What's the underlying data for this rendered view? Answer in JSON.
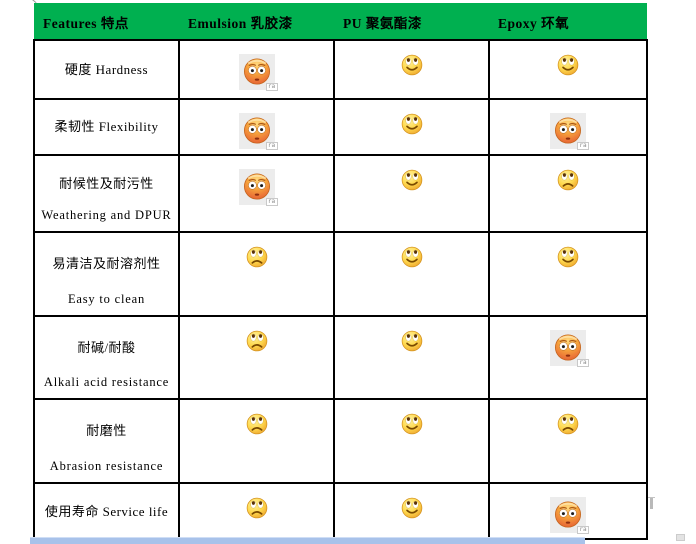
{
  "colors": {
    "header_green": "#00B050",
    "scrollbar_blue": "#A8C2EA",
    "border_black": "#000000",
    "flushed_bg_gray": "#ECECEC"
  },
  "table": {
    "header": {
      "columns": [
        {
          "label": "Features 特点"
        },
        {
          "label": "Emulsion 乳胶漆"
        },
        {
          "label": "PU 聚氨酯漆"
        },
        {
          "label": "Epoxy 环氧"
        }
      ]
    },
    "rating_icons": {
      "flushed": "flushed-face-icon",
      "smile": "smiling-face-icon",
      "sad": "frowning-face-icon"
    },
    "rows": [
      {
        "feature_line1": "硬度 Hardness",
        "feature_line2": "",
        "emulsion": "flushed",
        "pu": "smile",
        "epoxy": "smile"
      },
      {
        "feature_line1": "柔韧性 Flexibility",
        "feature_line2": "",
        "emulsion": "flushed",
        "pu": "smile",
        "epoxy": "flushed"
      },
      {
        "feature_line1": "耐候性及耐污性",
        "feature_line2": "Weathering and DPUR",
        "emulsion": "flushed",
        "pu": "smile",
        "epoxy": "sad"
      },
      {
        "feature_line1": "易清洁及耐溶剂性",
        "feature_line2": "Easy to clean",
        "emulsion": "sad",
        "pu": "smile",
        "epoxy": "smile"
      },
      {
        "feature_line1": "耐碱/耐酸",
        "feature_line2": "Alkali acid resistance",
        "emulsion": "sad",
        "pu": "smile",
        "epoxy": "flushed"
      },
      {
        "feature_line1": "耐磨性",
        "feature_line2": "Abrasion resistance",
        "emulsion": "sad",
        "pu": "smile",
        "epoxy": "sad"
      },
      {
        "feature_line1": "使用寿命 Service life",
        "feature_line2": "",
        "emulsion": "sad",
        "pu": "smile",
        "epoxy": "flushed"
      }
    ]
  }
}
